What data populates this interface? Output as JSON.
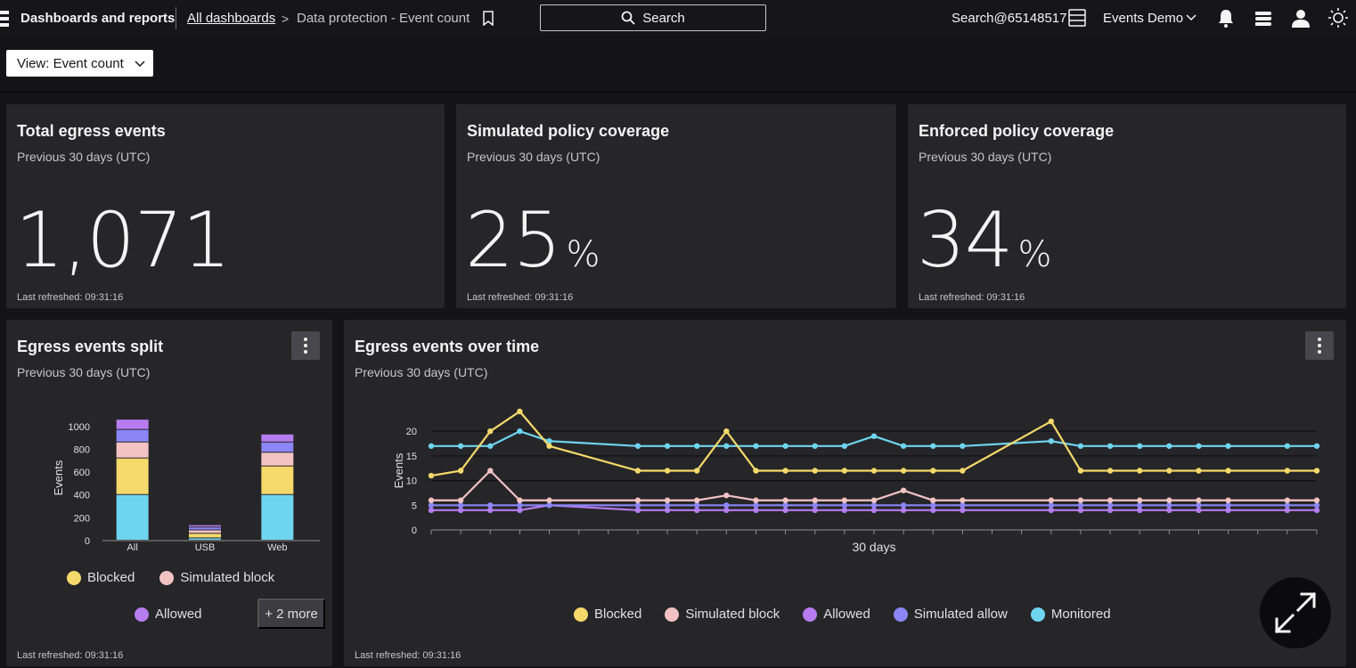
{
  "header": {
    "app_title": "Dashboards and reports",
    "breadcrumb_link": "All dashboards",
    "breadcrumb_current": "Data protection - Event count",
    "search_label": "Search",
    "tenant": "Search@65148517",
    "account": "Events Demo"
  },
  "toolbar": {
    "view_label": "View: Event count"
  },
  "cards": {
    "total": {
      "title": "Total egress events",
      "subtitle": "Previous 30 days (UTC)",
      "value": "1,071",
      "refreshed": "Last refreshed: 09:31:16"
    },
    "simulated": {
      "title": "Simulated policy coverage",
      "subtitle": "Previous 30 days (UTC)",
      "value": "25",
      "unit": "%",
      "refreshed": "Last refreshed: 09:31:16"
    },
    "enforced": {
      "title": "Enforced policy coverage",
      "subtitle": "Previous 30 days (UTC)",
      "value": "34",
      "unit": "%",
      "refreshed": "Last refreshed: 09:31:16"
    },
    "split": {
      "title": "Egress events split",
      "subtitle": "Previous 30 days (UTC)",
      "refreshed": "Last refreshed: 09:31:16",
      "more_label": "+ 2 more"
    },
    "timeline": {
      "title": "Egress events over time",
      "subtitle": "Previous 30 days (UTC)",
      "refreshed": "Last refreshed: 09:31:16"
    }
  },
  "colors": {
    "blocked": "#f6d96b",
    "simulated_block": "#f3c3c4",
    "allowed": "#b67cf0",
    "simulated_allow": "#8a86f5",
    "monitored": "#6fd4ef"
  },
  "chart_data": [
    {
      "type": "bar",
      "stacked": true,
      "ylabel": "Events",
      "ylim": [
        0,
        1100
      ],
      "yticks": [
        0,
        200,
        400,
        600,
        800,
        1000
      ],
      "categories": [
        "All",
        "USB",
        "Web"
      ],
      "series": [
        {
          "name": "Monitored",
          "values": [
            400,
            20,
            400
          ]
        },
        {
          "name": "Blocked",
          "values": [
            320,
            40,
            250
          ]
        },
        {
          "name": "Simulated block",
          "values": [
            140,
            30,
            120
          ]
        },
        {
          "name": "Simulated allow",
          "values": [
            110,
            25,
            90
          ]
        },
        {
          "name": "Allowed",
          "values": [
            90,
            20,
            70
          ]
        }
      ],
      "legend": [
        "Blocked",
        "Simulated block",
        "Allowed"
      ]
    },
    {
      "type": "line",
      "ylabel": "Events",
      "xlabel": "30 days",
      "ylim": [
        0,
        24
      ],
      "yticks": [
        0,
        5,
        10,
        15,
        20
      ],
      "x": [
        1,
        2,
        3,
        4,
        5,
        6,
        7,
        8,
        9,
        10,
        11,
        12,
        13,
        14,
        15,
        16,
        17,
        18,
        19,
        20,
        21,
        22,
        23,
        24,
        25,
        26,
        27,
        28,
        29,
        30,
        31
      ],
      "series": [
        {
          "name": "Blocked",
          "values": [
            11,
            12,
            20,
            24,
            17,
            null,
            null,
            12,
            12,
            12,
            20,
            12,
            12,
            12,
            12,
            12,
            12,
            12,
            12,
            null,
            null,
            22,
            12,
            12,
            12,
            12,
            12,
            12,
            null,
            12,
            12
          ]
        },
        {
          "name": "Simulated block",
          "values": [
            6,
            6,
            12,
            6,
            6,
            null,
            null,
            6,
            6,
            6,
            7,
            6,
            6,
            6,
            6,
            6,
            8,
            6,
            6,
            null,
            null,
            6,
            6,
            6,
            6,
            6,
            6,
            6,
            null,
            6,
            6
          ]
        },
        {
          "name": "Allowed",
          "values": [
            4,
            4,
            4,
            4,
            5,
            null,
            null,
            4,
            4,
            4,
            4,
            4,
            4,
            4,
            4,
            4,
            4,
            4,
            4,
            null,
            null,
            4,
            4,
            4,
            4,
            4,
            4,
            4,
            null,
            4,
            4
          ]
        },
        {
          "name": "Simulated allow",
          "values": [
            5,
            5,
            5,
            5,
            5,
            null,
            null,
            5,
            5,
            5,
            5,
            5,
            5,
            5,
            5,
            5,
            5,
            5,
            5,
            null,
            null,
            5,
            5,
            5,
            5,
            5,
            5,
            5,
            null,
            5,
            5
          ]
        },
        {
          "name": "Monitored",
          "values": [
            17,
            17,
            17,
            20,
            18,
            null,
            null,
            17,
            17,
            17,
            17,
            17,
            17,
            17,
            17,
            19,
            17,
            17,
            17,
            null,
            null,
            18,
            17,
            17,
            17,
            17,
            17,
            17,
            null,
            17,
            17
          ]
        }
      ],
      "legend": [
        "Blocked",
        "Simulated block",
        "Allowed",
        "Simulated allow",
        "Monitored"
      ]
    }
  ]
}
